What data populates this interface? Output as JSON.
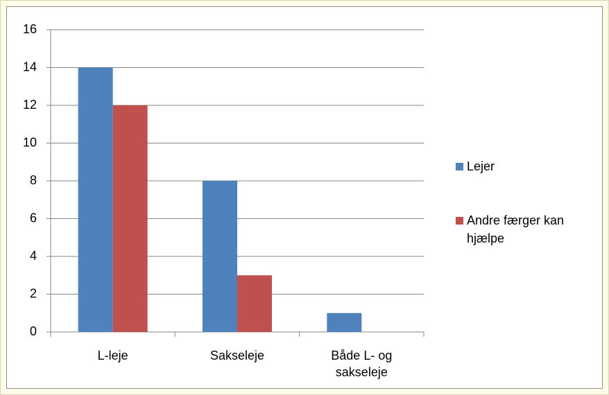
{
  "chart_data": {
    "type": "bar",
    "categories": [
      "L-leje",
      "Sakseleje",
      "Både L- og sakseleje"
    ],
    "series": [
      {
        "name": "Lejer",
        "color": "#4f81bd",
        "values": [
          14,
          8,
          1
        ]
      },
      {
        "name": "Andre færger kan hjælpe",
        "color": "#c0504d",
        "values": [
          12,
          3,
          0
        ]
      }
    ],
    "ylim": [
      0,
      16
    ],
    "yticks": [
      0,
      2,
      4,
      6,
      8,
      10,
      12,
      14,
      16
    ],
    "grid": true,
    "legend": "right"
  }
}
